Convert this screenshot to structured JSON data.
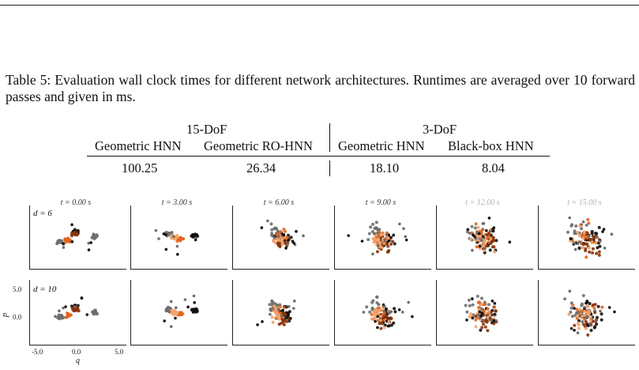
{
  "caption": "Table 5: Evaluation wall clock times for different network architectures. Runtimes are averaged over 10 forward passes and given in ms.",
  "table": {
    "group_headers": [
      "15-DoF",
      "3-DoF"
    ],
    "columns": [
      "Geometric HNN",
      "Geometric RO-HNN",
      "Geometric HNN",
      "Black-box HNN"
    ],
    "values": [
      "100.25",
      "26.34",
      "18.10",
      "8.04"
    ]
  },
  "figure": {
    "time_titles": [
      "t = 0.00 s",
      "t = 3.00 s",
      "t = 6.00 s",
      "t = 9.00 s",
      "t = 12.00 s",
      "t = 15.00 s"
    ],
    "row_labels": [
      "d = 6",
      "d = 10"
    ],
    "y_ticks": [
      "5.0",
      "0.0"
    ],
    "x_ticks": [
      "-5.0",
      "0.0",
      "5.0"
    ],
    "x_axis_label": "q",
    "y_axis_label": "p",
    "colors": {
      "gray": "#6e6e6e",
      "black": "#111111",
      "orange": "#e0661f",
      "light_orange": "#f4a36b",
      "dark_orange": "#8a3208"
    }
  }
}
